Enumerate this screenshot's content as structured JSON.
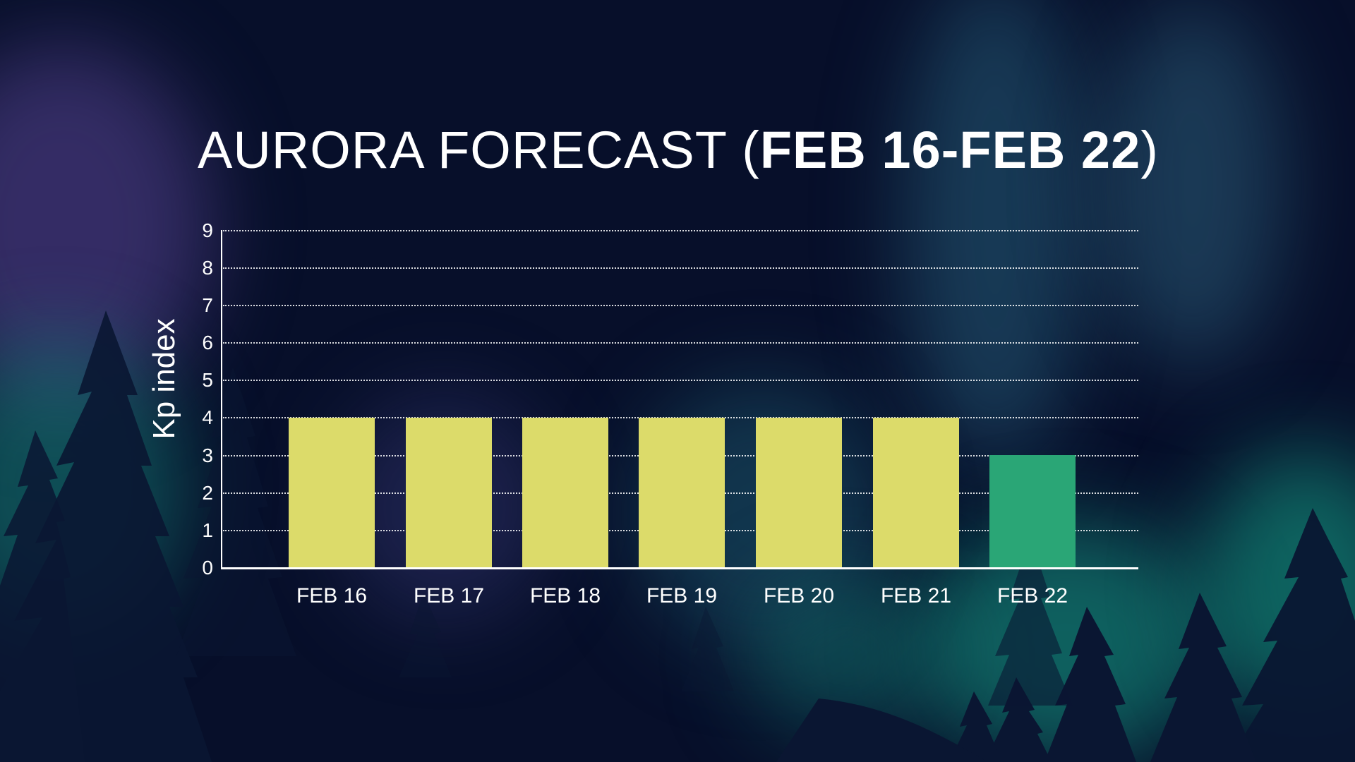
{
  "title": {
    "light": "AURORA FORECAST (",
    "bold": "FEB 16-FEB 22",
    "close": ")"
  },
  "colors": {
    "background": "#070f2a",
    "bar_high": "#dcdb6a",
    "bar_low": "#2aa676",
    "text": "#ffffff"
  },
  "chart_data": {
    "type": "bar",
    "title": "AURORA FORECAST (FEB 16-FEB 22)",
    "xlabel": "",
    "ylabel": "Kp index",
    "categories": [
      "FEB 16",
      "FEB 17",
      "FEB 18",
      "FEB 19",
      "FEB 20",
      "FEB 21",
      "FEB 22"
    ],
    "values": [
      4,
      4,
      4,
      4,
      4,
      4,
      3
    ],
    "bar_colors": [
      "#dcdb6a",
      "#dcdb6a",
      "#dcdb6a",
      "#dcdb6a",
      "#dcdb6a",
      "#dcdb6a",
      "#2aa676"
    ],
    "ylim": [
      0,
      9
    ],
    "yticks": [
      "0",
      "1",
      "2",
      "3",
      "4",
      "5",
      "6",
      "7",
      "8",
      "9"
    ],
    "grid": "horizontal dotted",
    "legend": null
  }
}
